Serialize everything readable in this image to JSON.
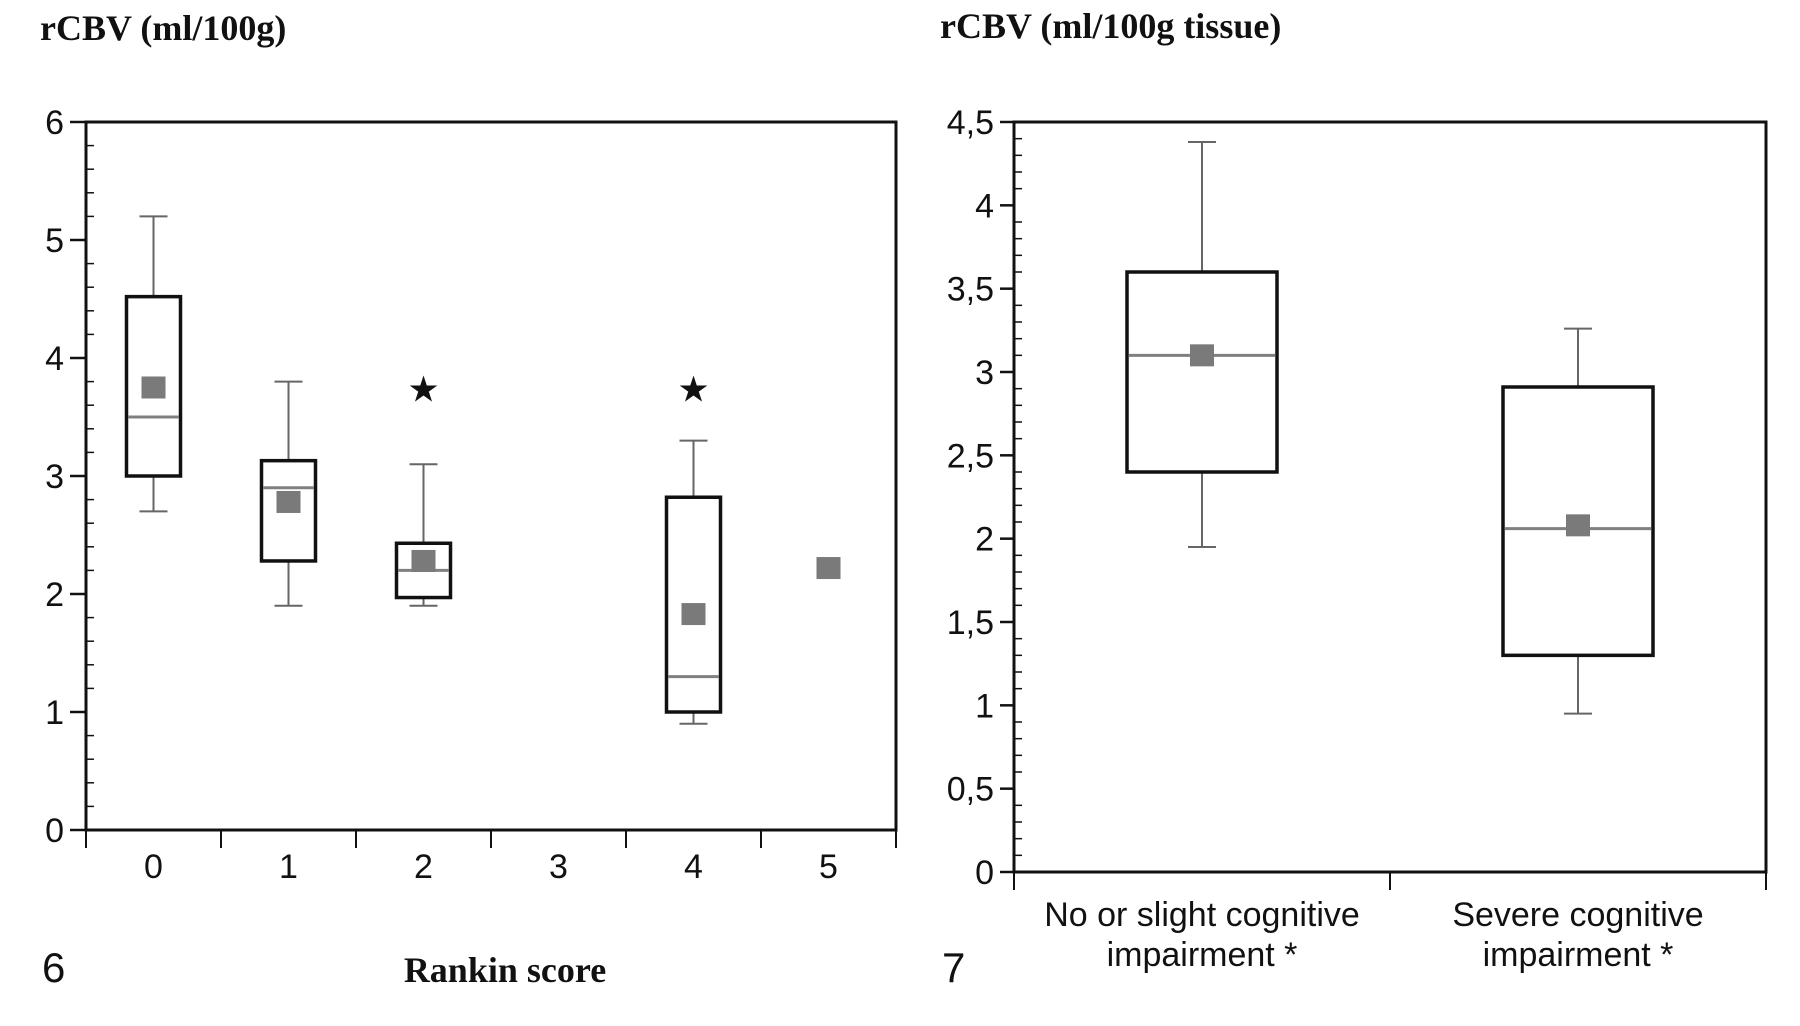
{
  "chart_data": [
    {
      "type": "box",
      "panel_label": "6",
      "title": "rCBV  (ml/100g)",
      "xlabel": "Rankin  score",
      "ylabel": "rCBV  (ml/100g)",
      "ylim": [
        0,
        6
      ],
      "yticks": [
        "0",
        "1",
        "2",
        "3",
        "4",
        "5",
        "6"
      ],
      "categories": [
        "0",
        "1",
        "2",
        "3",
        "4",
        "5"
      ],
      "boxes": [
        {
          "category": "0",
          "whisker_low": 2.7,
          "q1": 3.0,
          "median": 3.5,
          "q3": 4.52,
          "whisker_high": 5.2,
          "mean": 3.75,
          "significant": false
        },
        {
          "category": "1",
          "whisker_low": 1.9,
          "q1": 2.28,
          "median": 2.9,
          "q3": 3.13,
          "whisker_high": 3.8,
          "mean": 2.78,
          "significant": false
        },
        {
          "category": "2",
          "whisker_low": 1.9,
          "q1": 1.97,
          "median": 2.2,
          "q3": 2.43,
          "whisker_high": 3.1,
          "mean": 2.28,
          "significant": true
        },
        {
          "category": "3",
          "whisker_low": null,
          "q1": null,
          "median": null,
          "q3": null,
          "whisker_high": null,
          "mean": null,
          "significant": false
        },
        {
          "category": "4",
          "whisker_low": 0.9,
          "q1": 1.0,
          "median": 1.3,
          "q3": 2.82,
          "whisker_high": 3.3,
          "mean": 1.83,
          "significant": true
        },
        {
          "category": "5",
          "whisker_low": null,
          "q1": null,
          "median": null,
          "q3": null,
          "whisker_high": null,
          "mean": 2.22,
          "significant": false
        }
      ],
      "significance_marker": "★"
    },
    {
      "type": "box",
      "panel_label": "7",
      "title": "rCBV  (ml/100g  tissue)",
      "ylabel": "rCBV  (ml/100g  tissue)",
      "ylim": [
        0,
        4.5
      ],
      "yticks": [
        "0",
        "0,5",
        "1",
        "1,5",
        "2",
        "2,5",
        "3",
        "3,5",
        "4",
        "4,5"
      ],
      "categories": [
        {
          "line1": "No or slight cognitive",
          "line2": "impairment *"
        },
        {
          "line1": "Severe cognitive",
          "line2": "impairment *"
        }
      ],
      "boxes": [
        {
          "whisker_low": 1.95,
          "q1": 2.4,
          "median": 3.1,
          "q3": 3.6,
          "whisker_high": 4.38,
          "mean": 3.1
        },
        {
          "whisker_low": 0.95,
          "q1": 1.3,
          "median": 2.06,
          "q3": 2.91,
          "whisker_high": 3.26,
          "mean": 2.08
        }
      ]
    }
  ],
  "colors": {
    "axis": "#111111",
    "box_border": "#111111",
    "whisker": "#666666",
    "median_line": "#808080",
    "mean_marker": "#7a7a7a",
    "background": "#ffffff"
  }
}
